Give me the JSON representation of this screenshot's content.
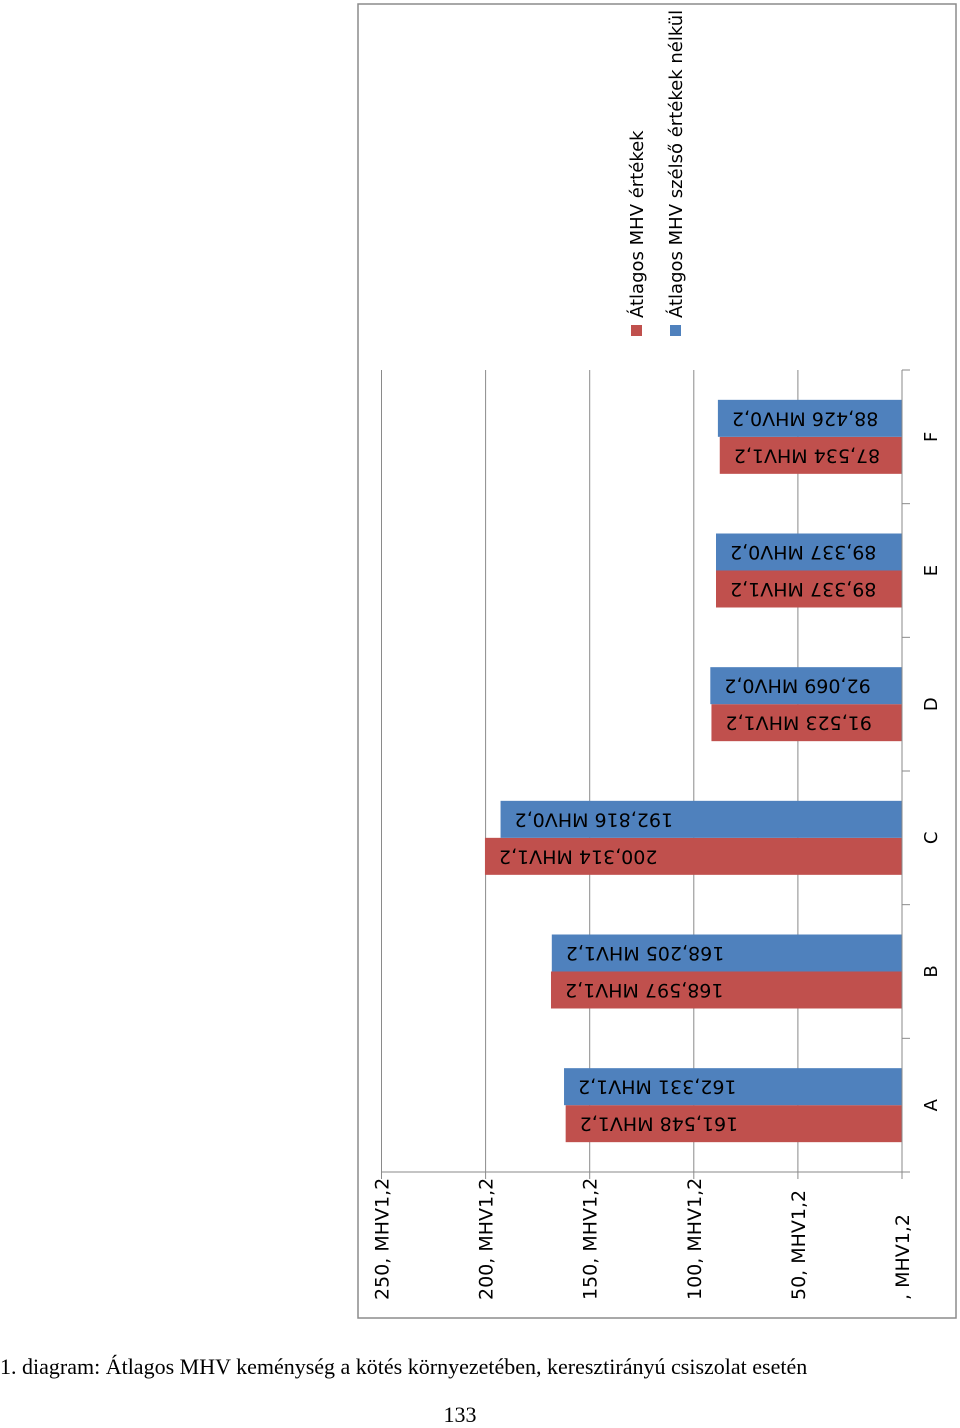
{
  "chart_data": {
    "type": "bar",
    "orientation": "rotated 90 degrees clockwise",
    "categories": [
      "A",
      "B",
      "C",
      "D",
      "E",
      "F"
    ],
    "series": [
      {
        "name": "Átlagos MHV értékek",
        "color": "#c0504d",
        "values": [
          161.548,
          168.597,
          200.314,
          91.523,
          89.337,
          87.534
        ],
        "labels": [
          "161,548 MHV1,2",
          "168,597 MHV1,2",
          "200,314 MHV1,2",
          "91,523 MHV1,2",
          "89,337 MHV1,2",
          "87,534 MHV1,2"
        ]
      },
      {
        "name": "Átlagos MHV szélső értékek nélkül",
        "color": "#4f81bd",
        "values": [
          162.331,
          168.205,
          192.816,
          92.069,
          89.337,
          88.426
        ],
        "labels": [
          "162,331 MHV1,2",
          "168,205 MHV1,2",
          "192,816 MHV0,2",
          "92,069 MHV0,2",
          "89,337 MHV0,2",
          "88,426 MHV0,2"
        ]
      }
    ],
    "value_axis": {
      "range": [
        0,
        250
      ],
      "ticks": [
        0,
        50,
        100,
        150,
        200,
        250
      ],
      "tick_labels": [
        ", MHV1,2",
        "50, MHV1,2",
        "100, MHV1,2",
        "150, MHV1,2",
        "200, MHV1,2",
        "250, MHV1,2"
      ]
    },
    "grid": true,
    "legend_position": "top-right (rotated)"
  },
  "caption": "1. diagram: Átlagos MHV keménység a kötés környezetében, keresztirányú csiszolat esetén",
  "page_number": "133"
}
